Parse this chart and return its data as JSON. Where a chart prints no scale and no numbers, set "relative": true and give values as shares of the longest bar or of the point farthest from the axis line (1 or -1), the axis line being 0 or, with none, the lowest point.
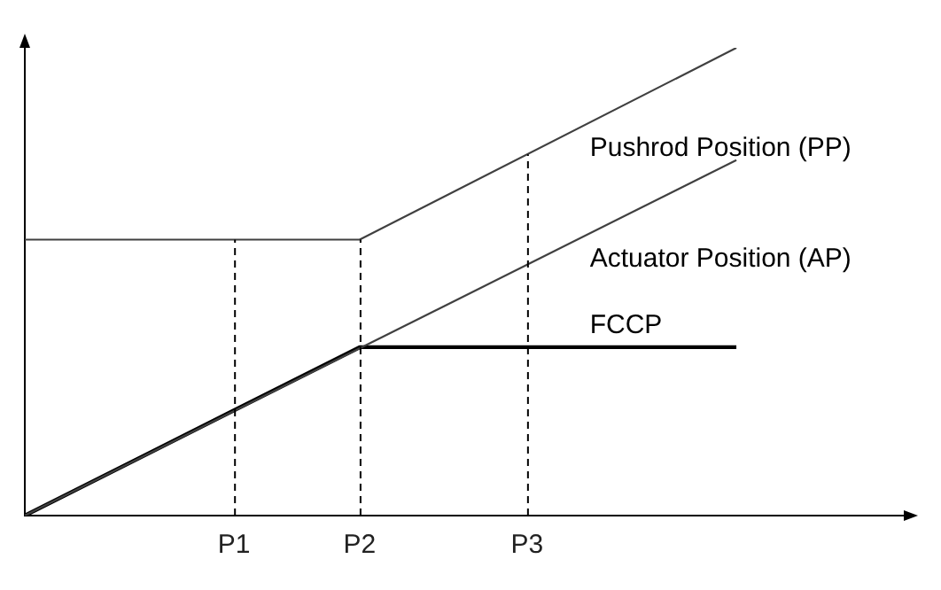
{
  "chart_data": {
    "type": "line",
    "relative": true,
    "legend": false,
    "grid": false,
    "marker": "none",
    "categories": [
      null,
      null,
      null,
      null,
      null,
      null,
      null,
      null,
      null,
      null,
      "P1",
      null,
      null,
      null,
      null,
      null,
      "P2",
      null,
      null,
      null,
      null,
      null,
      null,
      null,
      "P3",
      null,
      null,
      null,
      null,
      null,
      null,
      null,
      null,
      null,
      null,
      null,
      null,
      null,
      null,
      null,
      null,
      null,
      null
    ],
    "series": [
      {
        "name": "Pushrod Position (PP)",
        "color": "#404040",
        "values": [
          0.59,
          null,
          null,
          null,
          null,
          null,
          null,
          null,
          null,
          null,
          null,
          null,
          null,
          null,
          null,
          null,
          0.59,
          null,
          null,
          null,
          null,
          null,
          null,
          null,
          null,
          null,
          null,
          null,
          null,
          null,
          null,
          null,
          null,
          null,
          1,
          null,
          null,
          null,
          null,
          null,
          null,
          null,
          null
        ]
      },
      {
        "name": "Actuator Position (AP)",
        "color": "#404040",
        "values": [
          0,
          null,
          null,
          null,
          null,
          null,
          null,
          null,
          null,
          null,
          null,
          null,
          null,
          null,
          null,
          null,
          null,
          null,
          null,
          null,
          null,
          null,
          null,
          null,
          null,
          null,
          null,
          null,
          null,
          null,
          null,
          null,
          null,
          null,
          0.76,
          null,
          null,
          null,
          null,
          null,
          null,
          null,
          null
        ]
      },
      {
        "name": "FCCP",
        "color": "#000000",
        "values": [
          0,
          null,
          null,
          null,
          null,
          null,
          null,
          null,
          null,
          null,
          null,
          null,
          null,
          null,
          null,
          null,
          0.36,
          null,
          null,
          null,
          null,
          null,
          null,
          null,
          null,
          null,
          null,
          null,
          null,
          null,
          null,
          null,
          null,
          null,
          0.36,
          null,
          null,
          null,
          null,
          null,
          null,
          null,
          null
        ]
      }
    ],
    "ref_lines": [
      {
        "axis": "x",
        "value": "P1",
        "line_style": "dashed"
      },
      {
        "axis": "x",
        "value": "P2",
        "line_style": "dashed"
      },
      {
        "axis": "x",
        "value": "P3",
        "line_style": "dashed"
      }
    ]
  }
}
